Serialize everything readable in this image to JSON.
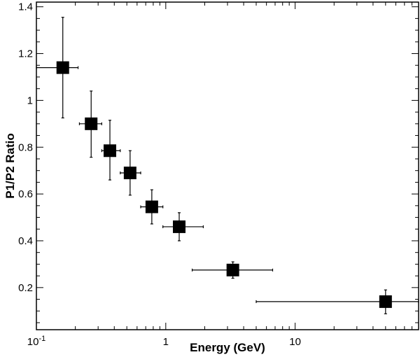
{
  "chart_data": {
    "type": "scatter",
    "title": "",
    "xlabel": "Energy (GeV)",
    "ylabel": "P1/P2 Ratio",
    "xscale": "log",
    "xlim": [
      0.1,
      90
    ],
    "ylim": [
      0.02,
      1.42
    ],
    "x_major_ticks": [
      0.1,
      1,
      10
    ],
    "x_tick_labels": [
      {
        "base": "10",
        "exp": "-1"
      },
      {
        "base": "1",
        "exp": ""
      },
      {
        "base": "10",
        "exp": ""
      }
    ],
    "y_ticks": [
      0.2,
      0.4,
      0.6,
      0.8,
      1.0,
      1.2,
      1.4
    ],
    "y_tick_labels": [
      "0.2",
      "0.4",
      "0.6",
      "0.8",
      "1",
      "1.2",
      "1.4"
    ],
    "grid": false,
    "legend": "none",
    "series": [
      {
        "marker": "square",
        "color": "#000000",
        "points": [
          {
            "x": 0.16,
            "y": 1.14,
            "xlo": 0.1,
            "xhi": 0.21,
            "ylo": 0.925,
            "yhi": 1.355
          },
          {
            "x": 0.265,
            "y": 0.9,
            "xlo": 0.215,
            "xhi": 0.32,
            "ylo": 0.757,
            "yhi": 1.04
          },
          {
            "x": 0.37,
            "y": 0.785,
            "xlo": 0.32,
            "xhi": 0.445,
            "ylo": 0.66,
            "yhi": 0.915
          },
          {
            "x": 0.53,
            "y": 0.69,
            "xlo": 0.445,
            "xhi": 0.64,
            "ylo": 0.595,
            "yhi": 0.785
          },
          {
            "x": 0.78,
            "y": 0.545,
            "xlo": 0.64,
            "xhi": 0.95,
            "ylo": 0.472,
            "yhi": 0.618
          },
          {
            "x": 1.27,
            "y": 0.46,
            "xlo": 0.95,
            "xhi": 1.95,
            "ylo": 0.4,
            "yhi": 0.52
          },
          {
            "x": 3.3,
            "y": 0.275,
            "xlo": 1.6,
            "xhi": 6.7,
            "ylo": 0.24,
            "yhi": 0.31
          },
          {
            "x": 50,
            "y": 0.14,
            "xlo": 5.0,
            "xhi": 90,
            "ylo": 0.088,
            "yhi": 0.19
          }
        ]
      }
    ]
  }
}
